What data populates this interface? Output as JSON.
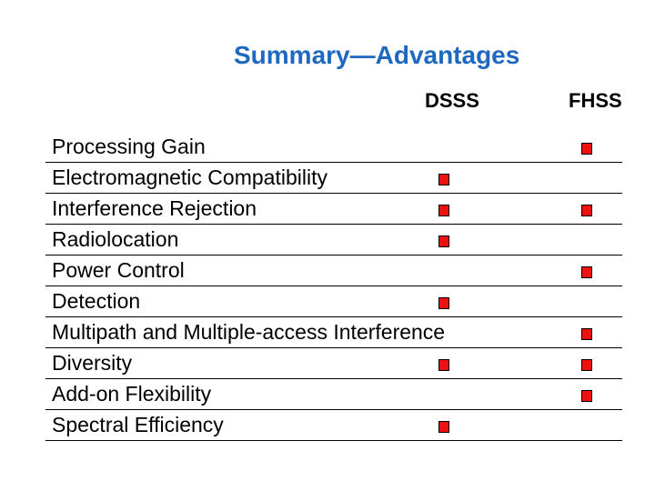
{
  "slide": {
    "title": "Summary—Advantages",
    "colors": {
      "background": "#FFFFFF",
      "title": "#1E68C0",
      "text": "#000000",
      "row_line": "#000000",
      "marker_fill": "#EE1111",
      "marker_border": "#000000"
    },
    "table": {
      "columns": [
        {
          "label": "DSSS"
        },
        {
          "label": "FHSS"
        }
      ],
      "marker_icon": "filled-red-square",
      "rows": [
        {
          "label": "Processing Gain",
          "dsss": false,
          "fhss": true
        },
        {
          "label": "Electromagnetic Compatibility",
          "dsss": true,
          "fhss": false
        },
        {
          "label": "Interference Rejection",
          "dsss": true,
          "fhss": true
        },
        {
          "label": "Radiolocation",
          "dsss": true,
          "fhss": false
        },
        {
          "label": "Power Control",
          "dsss": false,
          "fhss": true
        },
        {
          "label": "Detection",
          "dsss": true,
          "fhss": false
        },
        {
          "label": "Multipath and Multiple-access Interference",
          "dsss": false,
          "fhss": true
        },
        {
          "label": "Diversity",
          "dsss": true,
          "fhss": true
        },
        {
          "label": "Add-on Flexibility",
          "dsss": false,
          "fhss": true
        },
        {
          "label": "Spectral Efficiency",
          "dsss": true,
          "fhss": false
        }
      ]
    }
  }
}
